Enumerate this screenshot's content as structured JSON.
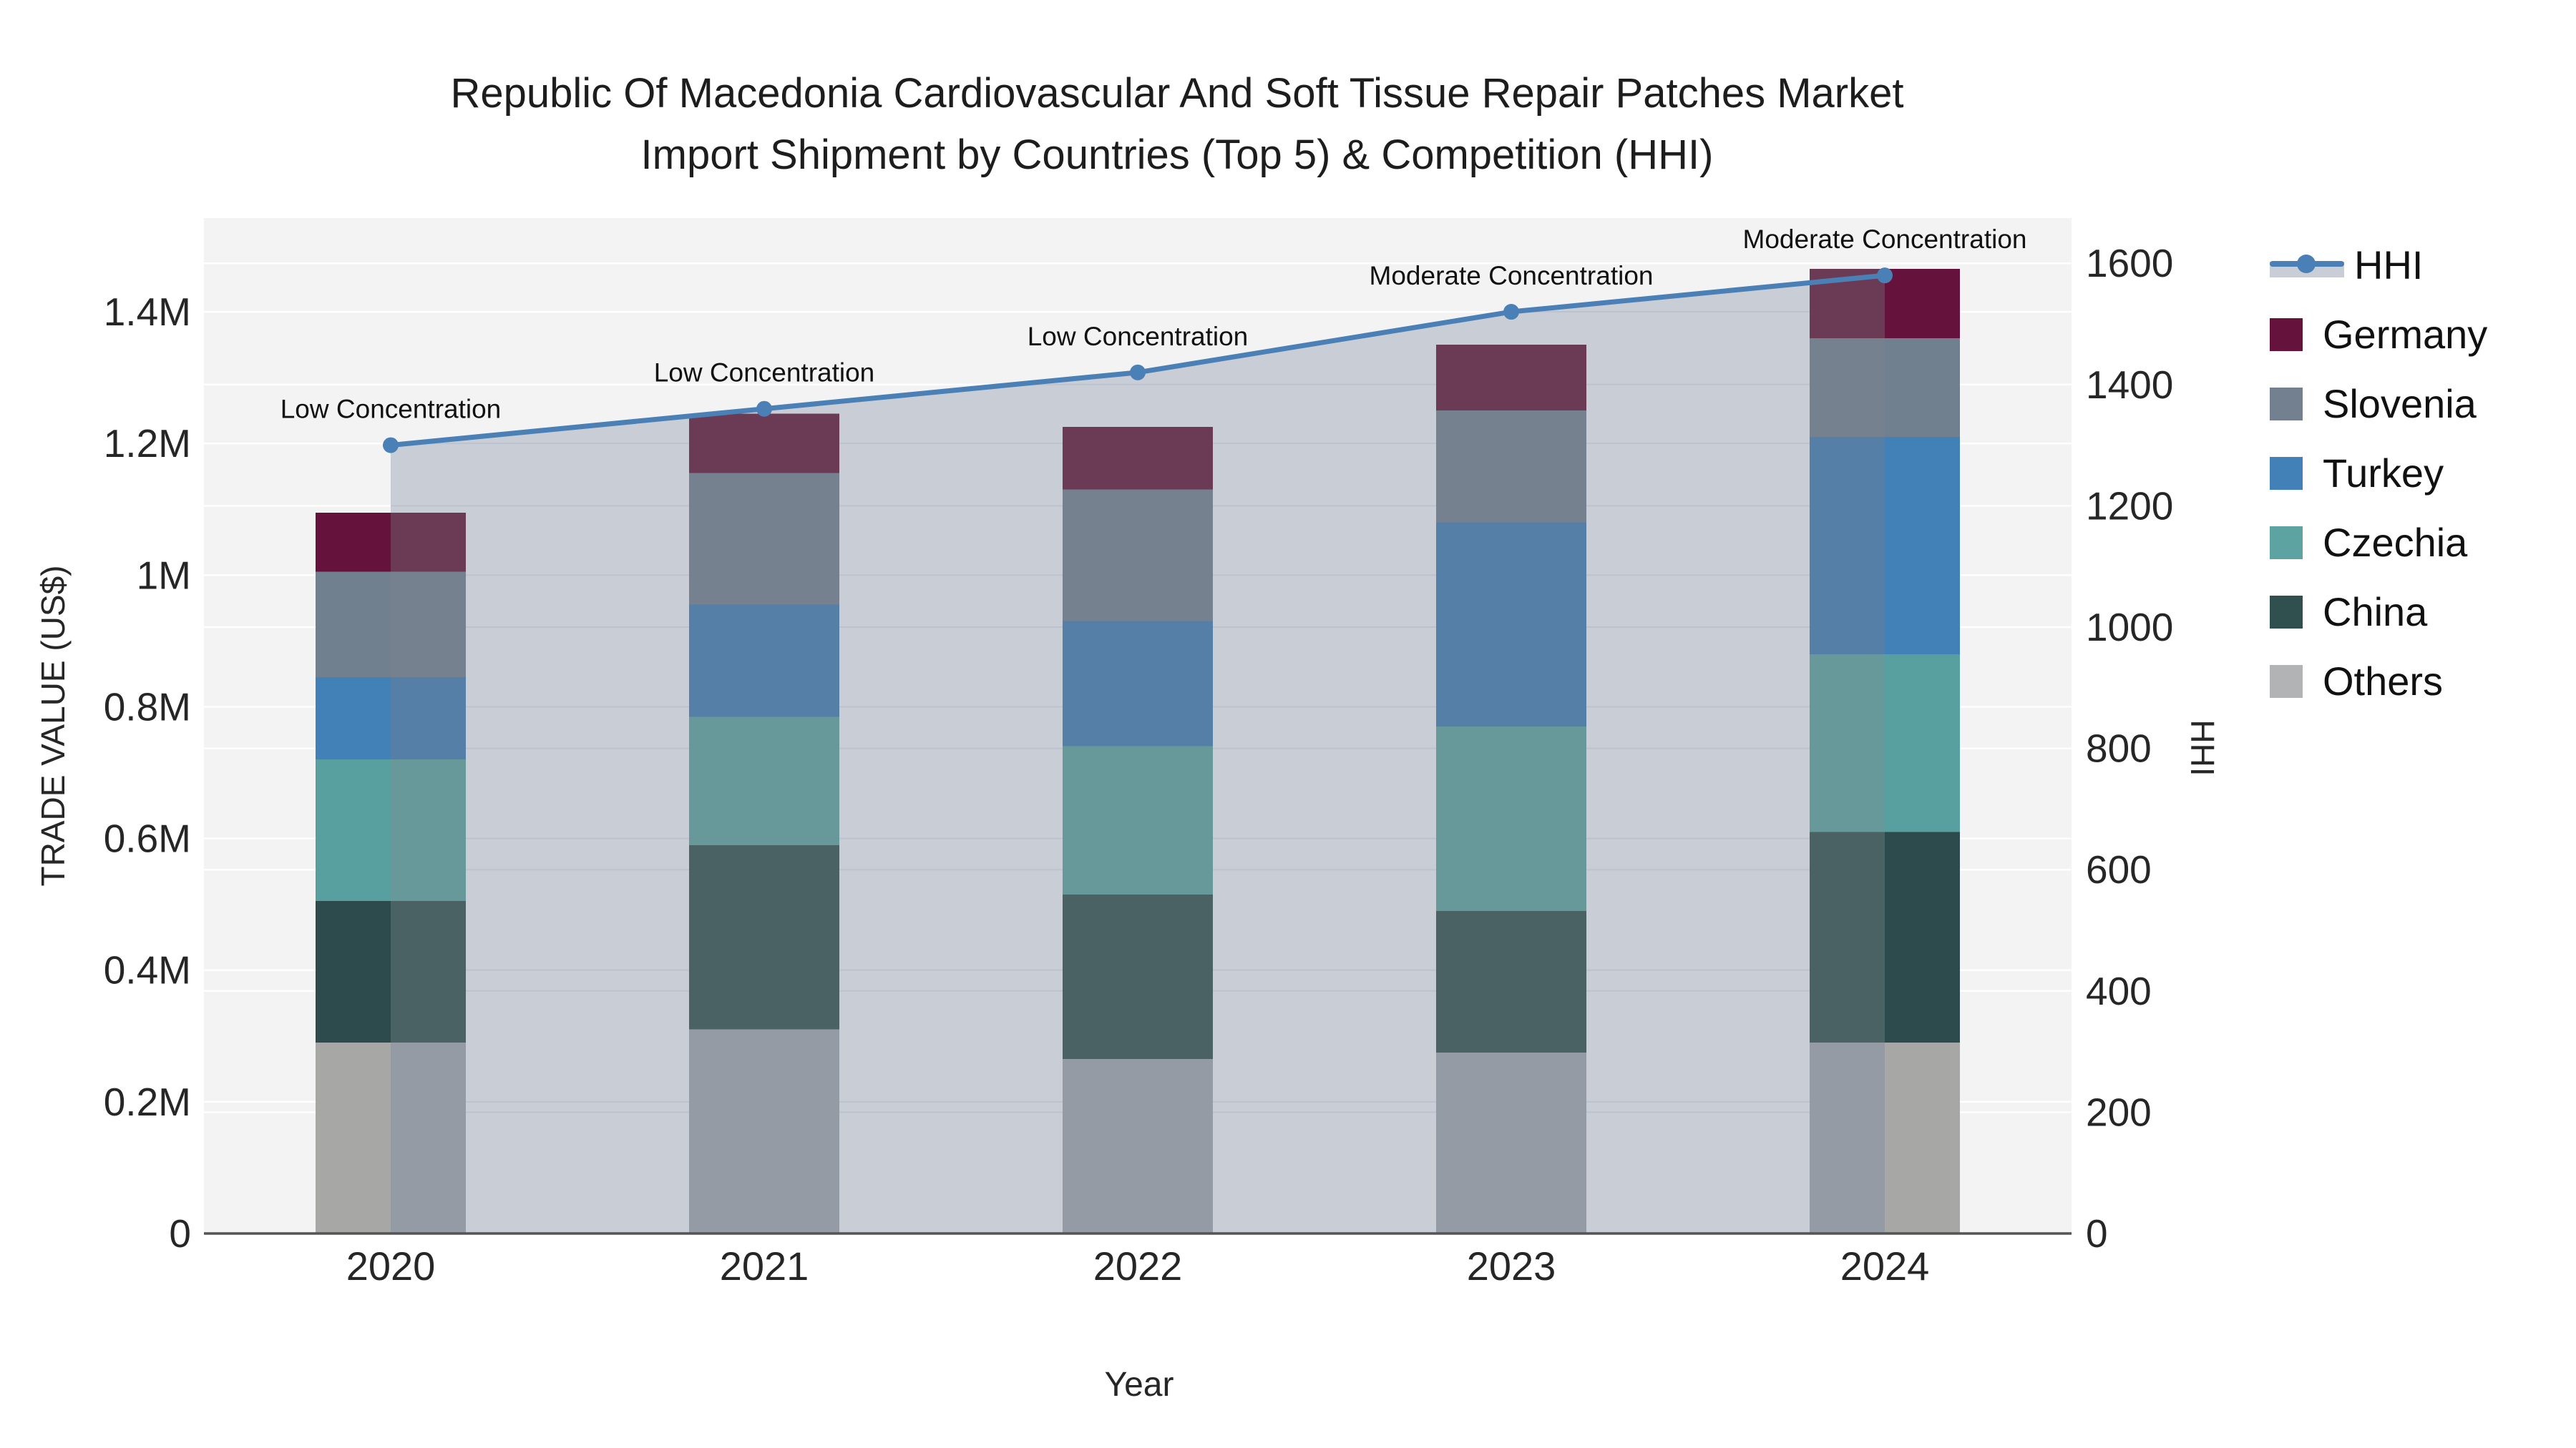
{
  "title": {
    "line1": "Republic Of Macedonia Cardiovascular And Soft Tissue Repair Patches Market",
    "line2": "Import Shipment by Countries (Top 5) & Competition (HHI)"
  },
  "axes": {
    "x": {
      "title": "Year",
      "ticks": [
        "2020",
        "2021",
        "2022",
        "2023",
        "2024"
      ]
    },
    "y_left": {
      "title": "TRADE VALUE (US$)",
      "tick_labels": [
        "0",
        "0.2M",
        "0.4M",
        "0.6M",
        "0.8M",
        "1M",
        "1.2M",
        "1.4M"
      ],
      "tick_values_musd": [
        0,
        0.2,
        0.4,
        0.6,
        0.8,
        1.0,
        1.2,
        1.4
      ],
      "range_musd": [
        0,
        1.542
      ]
    },
    "y_right": {
      "title": "HHI",
      "tick_labels": [
        "0",
        "200",
        "400",
        "600",
        "800",
        "1000",
        "1200",
        "1400",
        "1600"
      ],
      "tick_values": [
        0,
        200,
        400,
        600,
        800,
        1000,
        1200,
        1400,
        1600
      ],
      "range": [
        0,
        1675
      ]
    }
  },
  "legend": {
    "items": [
      {
        "label": "HHI",
        "type": "line"
      },
      {
        "label": "Germany",
        "type": "swatch",
        "color": "#65123c"
      },
      {
        "label": "Slovenia",
        "type": "swatch",
        "color": "#72808f"
      },
      {
        "label": "Turkey",
        "type": "swatch",
        "color": "#4280b8"
      },
      {
        "label": "Czechia",
        "type": "swatch",
        "color": "#5da3a1"
      },
      {
        "label": "China",
        "type": "swatch",
        "color": "#30504f"
      },
      {
        "label": "Others",
        "type": "swatch",
        "color": "#b1b3b4"
      }
    ]
  },
  "colors": {
    "plot_bg": "#f3f3f3",
    "grid_on_bg": "#ffffff",
    "grid_on_area": "#bdc3ce",
    "area_fill": "#c9cdd6",
    "hhi_line": "#4a80b5",
    "axis_line": "#545454",
    "text": "#262626",
    "annotation_text": "#111111",
    "series_pure": {
      "Germany": "#65123c",
      "Slovenia": "#70808f",
      "Turkey": "#4280b8",
      "Czechia": "#57a09f",
      "China": "#2d4b4c",
      "Others": "#a7a7a5"
    },
    "series_muted": {
      "Germany": "#6b3a55",
      "Slovenia": "#75818e",
      "Turkey": "#567fa8",
      "Czechia": "#68999a",
      "China": "#4a6263",
      "Others": "#959ba5"
    }
  },
  "chart_data": {
    "type": "bar",
    "subtype": "stacked-bars-with-line-overlay",
    "unit": "M US$",
    "categories": [
      "2020",
      "2021",
      "2022",
      "2023",
      "2024"
    ],
    "stack_order_bottom_to_top": [
      "Others",
      "China",
      "Czechia",
      "Turkey",
      "Slovenia",
      "Germany"
    ],
    "series": [
      {
        "name": "Germany",
        "values_musd": [
          0.09,
          0.09,
          0.095,
          0.1,
          0.105
        ]
      },
      {
        "name": "Slovenia",
        "values_musd": [
          0.16,
          0.2,
          0.2,
          0.17,
          0.15
        ]
      },
      {
        "name": "Turkey",
        "values_musd": [
          0.125,
          0.17,
          0.19,
          0.31,
          0.33
        ]
      },
      {
        "name": "Czechia",
        "values_musd": [
          0.215,
          0.195,
          0.225,
          0.28,
          0.27
        ]
      },
      {
        "name": "China",
        "values_musd": [
          0.215,
          0.28,
          0.25,
          0.215,
          0.32
        ]
      },
      {
        "name": "Others",
        "values_musd": [
          0.29,
          0.31,
          0.265,
          0.275,
          0.29
        ]
      }
    ],
    "totals_musd": [
      1.095,
      1.245,
      1.225,
      1.35,
      1.465
    ],
    "hhi_line": {
      "name": "HHI",
      "axis": "right",
      "values": [
        1300,
        1360,
        1420,
        1520,
        1580
      ]
    },
    "annotations": [
      {
        "year": "2020",
        "text": "Low Concentration"
      },
      {
        "year": "2021",
        "text": "Low Concentration"
      },
      {
        "year": "2022",
        "text": "Low Concentration"
      },
      {
        "year": "2023",
        "text": "Moderate Concentration"
      },
      {
        "year": "2024",
        "text": "Moderate Concentration"
      }
    ],
    "layout_hints": {
      "grid": true,
      "legend_position": "right",
      "area_fill_spans": "from 2020 bar center to 2024 bar center, drawn over bars (mutes covered halves)"
    }
  }
}
